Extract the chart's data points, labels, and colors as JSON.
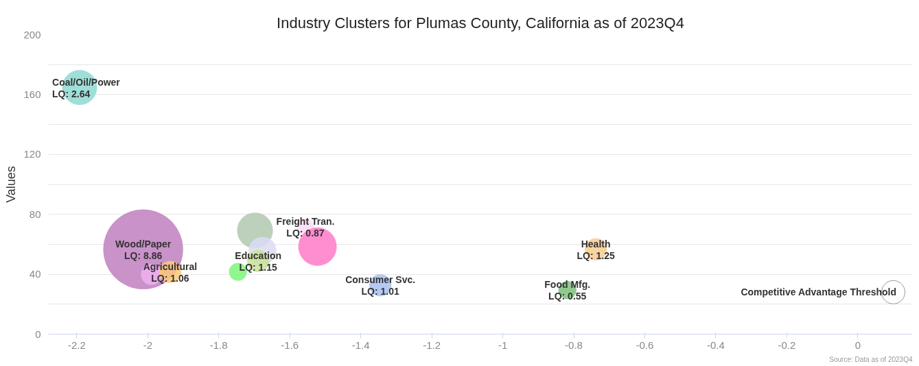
{
  "chart_data": {
    "type": "bubble",
    "title": "Industry Clusters for Plumas County, California as of 2023Q4",
    "ylabel": "Values",
    "xlim": [
      -2.28,
      0.154
    ],
    "ylim": [
      0,
      200
    ],
    "xticks": [
      -2.2,
      -2,
      -1.8,
      -1.6,
      -1.4,
      -1.2,
      -1,
      -0.8,
      -0.6,
      -0.4,
      -0.2,
      0
    ],
    "yticks": [
      0,
      {
        "value": 20,
        "label": null
      },
      40,
      {
        "value": 60,
        "label": null
      },
      80,
      {
        "value": 100,
        "label": null
      },
      120,
      {
        "value": 140,
        "label": null
      },
      160,
      {
        "value": 180,
        "label": null
      },
      200
    ],
    "grid": "y",
    "series": [
      {
        "name": "Coal/Oil/Power",
        "color": "#8fd8d2",
        "x": [
          -2.192
        ],
        "values": [
          164.7
        ],
        "sizes": [
          0.19
        ]
      },
      {
        "name": "Wood/Paper",
        "color": "#bf7fbf",
        "x": [
          -2.013
        ],
        "values": [
          56.6
        ],
        "sizes": [
          1
        ]
      },
      {
        "color": "#f0b0f0",
        "x": [
          -1.99
        ],
        "values": [
          39.8
        ],
        "sizes": [
          0.067
        ]
      },
      {
        "name": "Agricultural",
        "color": "#fbc87a",
        "x": [
          -1.937
        ],
        "values": [
          41.6
        ],
        "sizes": [
          0.076
        ]
      },
      {
        "color": "#7cf57c",
        "x": [
          -1.746
        ],
        "values": [
          41.6
        ],
        "sizes": [
          0.05
        ]
      },
      {
        "color": "#b0c8b0",
        "x": [
          -1.698
        ],
        "values": [
          69.2
        ],
        "sizes": [
          0.2
        ]
      },
      {
        "name": "Freight Tran.",
        "color": "#fcdcf5",
        "x": [
          -1.556
        ],
        "values": [
          71.5
        ],
        "sizes": [
          0.043
        ]
      },
      {
        "color": "#dcdcf5",
        "x": [
          -1.677
        ],
        "values": [
          55.7
        ],
        "sizes": [
          0.12
        ]
      },
      {
        "name": "Education",
        "color": "#c8e096",
        "x": [
          -1.689
        ],
        "values": [
          48.9
        ],
        "sizes": [
          0.076
        ]
      },
      {
        "color": "#ff7ac8",
        "x": [
          -1.522
        ],
        "values": [
          58.4
        ],
        "sizes": [
          0.23
        ]
      },
      {
        "name": "Consumer Svc.",
        "color": "#a8c0f0",
        "x": [
          -1.345
        ],
        "values": [
          32.6
        ],
        "sizes": [
          0.076
        ]
      },
      {
        "name": "Food Mfg.",
        "color": "#7cc07c",
        "x": [
          -0.818
        ],
        "values": [
          29.4
        ],
        "sizes": [
          0.05
        ]
      },
      {
        "name": "Health",
        "color": "#f8cc90",
        "x": [
          -0.738
        ],
        "values": [
          56.6
        ],
        "sizes": [
          0.076
        ]
      },
      {
        "name": "Competitive Advantage Threshold",
        "color": "#ffffff",
        "x": [
          0.1
        ],
        "values": [
          28
        ],
        "sizes": [
          0.086
        ]
      }
    ],
    "annotations": [
      {
        "text": "LQ: 2.64",
        "x": -2.192,
        "y": 164.7
      },
      {
        "text": "LQ: 8.86",
        "x": -2.013,
        "y": 56.6
      },
      {
        "text": "LQ: 1.06",
        "x": -1.937,
        "y": 41.6
      },
      {
        "text": "LQ: 0.87",
        "x": -1.556,
        "y": 71.5
      },
      {
        "text": "LQ: 1.15",
        "x": -1.689,
        "y": 48.9
      },
      {
        "text": "LQ: 1.01",
        "x": -1.345,
        "y": 32.6
      },
      {
        "text": "LQ: 0.55",
        "x": -0.818,
        "y": 29.4
      },
      {
        "text": "LQ: 1.25",
        "x": -0.738,
        "y": 56.6
      },
      "Source: Data as of 2023Q4"
    ]
  }
}
